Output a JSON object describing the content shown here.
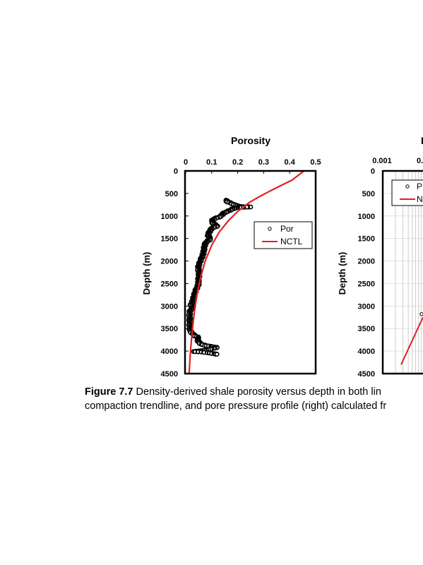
{
  "chart_data": [
    {
      "type": "scatter",
      "title": "Porosity",
      "ylabel": "Depth (m)",
      "xlim": [
        0,
        0.5
      ],
      "ylim": [
        0,
        4500
      ],
      "y_inverted": true,
      "x_axis_position": "top",
      "x_ticks": [
        "0",
        "0.1",
        "0.2",
        "0.3",
        "0.4",
        "0.5"
      ],
      "y_ticks": [
        "0",
        "500",
        "1000",
        "1500",
        "2000",
        "2500",
        "3000",
        "3500",
        "4000",
        "4500"
      ],
      "legend": {
        "placement": "middle-right",
        "entries": [
          "Por",
          "NCTL"
        ]
      },
      "series": [
        {
          "name": "Por",
          "marker": "open-circle",
          "color": "#000000",
          "points": [
            [
              0.155,
              650
            ],
            [
              0.16,
              680
            ],
            [
              0.175,
              720
            ],
            [
              0.19,
              760
            ],
            [
              0.21,
              790
            ],
            [
              0.23,
              800
            ],
            [
              0.25,
              800
            ],
            [
              0.2,
              810
            ],
            [
              0.185,
              830
            ],
            [
              0.175,
              860
            ],
            [
              0.16,
              900
            ],
            [
              0.145,
              940
            ],
            [
              0.14,
              980
            ],
            [
              0.13,
              1020
            ],
            [
              0.11,
              1060
            ],
            [
              0.1,
              1110
            ],
            [
              0.105,
              1160
            ],
            [
              0.115,
              1200
            ],
            [
              0.12,
              1230
            ],
            [
              0.1,
              1270
            ],
            [
              0.095,
              1320
            ],
            [
              0.09,
              1370
            ],
            [
              0.085,
              1420
            ],
            [
              0.09,
              1470
            ],
            [
              0.095,
              1520
            ],
            [
              0.08,
              1570
            ],
            [
              0.075,
              1620
            ],
            [
              0.072,
              1680
            ],
            [
              0.07,
              1750
            ],
            [
              0.068,
              1820
            ],
            [
              0.065,
              1880
            ],
            [
              0.06,
              1950
            ],
            [
              0.055,
              2020
            ],
            [
              0.05,
              2090
            ],
            [
              0.048,
              2160
            ],
            [
              0.05,
              2230
            ],
            [
              0.052,
              2300
            ],
            [
              0.05,
              2370
            ],
            [
              0.048,
              2440
            ],
            [
              0.05,
              2500
            ],
            [
              0.045,
              2570
            ],
            [
              0.04,
              2640
            ],
            [
              0.035,
              2710
            ],
            [
              0.032,
              2780
            ],
            [
              0.028,
              2850
            ],
            [
              0.025,
              2920
            ],
            [
              0.02,
              2980
            ],
            [
              0.03,
              3020
            ],
            [
              0.018,
              3080
            ],
            [
              0.015,
              3150
            ],
            [
              0.015,
              3230
            ],
            [
              0.016,
              3310
            ],
            [
              0.015,
              3390
            ],
            [
              0.016,
              3470
            ],
            [
              0.017,
              3550
            ],
            [
              0.025,
              3610
            ],
            [
              0.035,
              3660
            ],
            [
              0.05,
              3700
            ],
            [
              0.045,
              3750
            ],
            [
              0.05,
              3800
            ],
            [
              0.06,
              3850
            ],
            [
              0.08,
              3880
            ],
            [
              0.1,
              3900
            ],
            [
              0.12,
              3920
            ],
            [
              0.1,
              3950
            ],
            [
              0.075,
              3980
            ],
            [
              0.05,
              4000
            ],
            [
              0.03,
              4010
            ],
            [
              0.06,
              4020
            ],
            [
              0.09,
              4040
            ],
            [
              0.11,
              4060
            ],
            [
              0.12,
              4070
            ]
          ]
        },
        {
          "name": "NCTL",
          "marker": "line",
          "color": "#e32020",
          "points": [
            [
              0.455,
              0
            ],
            [
              0.41,
              200
            ],
            [
              0.34,
              400
            ],
            [
              0.29,
              550
            ],
            [
              0.245,
              700
            ],
            [
              0.2,
              900
            ],
            [
              0.165,
              1100
            ],
            [
              0.13,
              1350
            ],
            [
              0.1,
              1650
            ],
            [
              0.075,
              2000
            ],
            [
              0.058,
              2350
            ],
            [
              0.045,
              2700
            ],
            [
              0.035,
              3050
            ],
            [
              0.028,
              3400
            ],
            [
              0.022,
              3750
            ],
            [
              0.017,
              4100
            ],
            [
              0.013,
              4500
            ]
          ]
        }
      ]
    },
    {
      "type": "line",
      "title": "",
      "ylabel": "Depth (m)",
      "x_scale": "log",
      "x_ticks_visible": [
        "0.001",
        "0."
      ],
      "y_ticks": [
        "0",
        "500",
        "1000",
        "1500",
        "2000",
        "2500",
        "3000",
        "3500",
        "4000",
        "4500"
      ],
      "ylim": [
        0,
        4500
      ],
      "y_inverted": true,
      "legend": {
        "placement": "top-left",
        "entries_visible": [
          "P",
          "N"
        ]
      },
      "series": [
        {
          "marker": "line",
          "color": "#e32020",
          "points_visible": [
            [
              0.0022,
              4300
            ],
            [
              0.003,
              3300
            ]
          ]
        },
        {
          "marker": "open-circle",
          "color": "#000000",
          "points_visible": [
            [
              0.0029,
              3180
            ]
          ]
        }
      ]
    }
  ],
  "caption": {
    "label": "Figure 7.7",
    "line1": "Density-derived shale porosity versus depth in both lin",
    "line2": "compaction trendline, and pore pressure profile (right) calculated fr"
  },
  "colors": {
    "nctl": "#e32020",
    "points": "#000000",
    "frame": "#000000"
  }
}
